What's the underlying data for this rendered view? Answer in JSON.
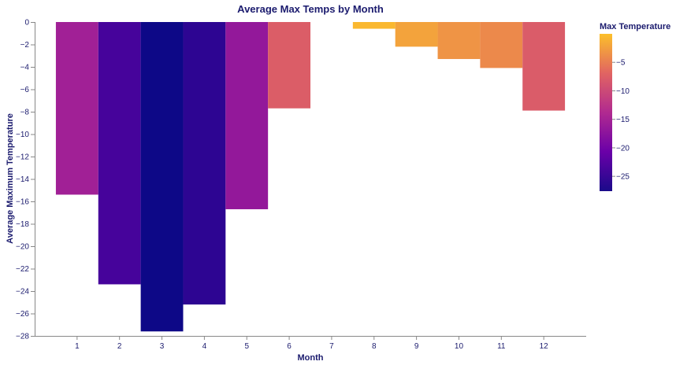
{
  "chart_data": {
    "type": "bar",
    "title": "Average Max Temps by Month",
    "xlabel": "Month",
    "ylabel": "Average Maximum Temperature",
    "categories": [
      "1",
      "2",
      "3",
      "4",
      "5",
      "6",
      "7",
      "8",
      "9",
      "10",
      "11",
      "12"
    ],
    "values": [
      -15.4,
      -23.4,
      -27.6,
      -25.2,
      -16.7,
      -7.7,
      0.0,
      -0.6,
      -2.2,
      -3.3,
      -4.1,
      -7.9
    ],
    "ylim": [
      -28,
      0
    ],
    "yticks": [
      0,
      -2,
      -4,
      -6,
      -8,
      -10,
      -12,
      -14,
      -16,
      -18,
      -20,
      -22,
      -24,
      -26,
      -28
    ],
    "grid": false,
    "color_scale": "plasma",
    "legend": {
      "title": "Max Temperature",
      "placement": "right",
      "ticks": [
        -5,
        -10,
        -15,
        -20,
        -25
      ],
      "domain": [
        -27.6,
        0
      ]
    }
  }
}
